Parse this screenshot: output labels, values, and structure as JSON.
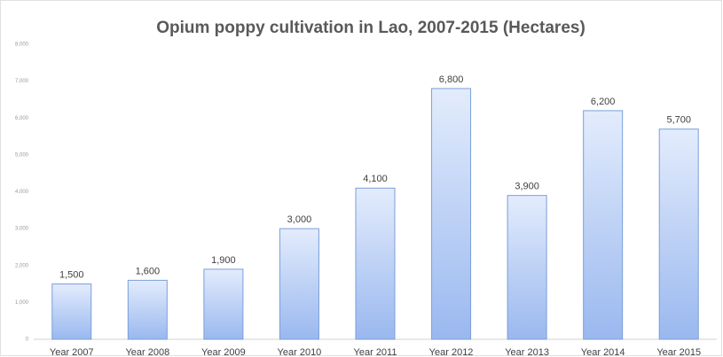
{
  "chart_data": {
    "type": "bar",
    "title": "Opium poppy cultivation in Lao, 2007-2015 (Hectares)",
    "categories": [
      "Year 2007",
      "Year 2008",
      "Year 2009",
      "Year 2010",
      "Year 2011",
      "Year 2012",
      "Year 2013",
      "Year 2014",
      "Year 2015"
    ],
    "values": [
      1500,
      1600,
      1900,
      3000,
      4100,
      6800,
      3900,
      6200,
      5700
    ],
    "value_labels": [
      "1,500",
      "1,600",
      "1,900",
      "3,000",
      "4,100",
      "6,800",
      "3,900",
      "6,200",
      "5,700"
    ],
    "color": "#9ab8ef",
    "ylim": [
      0,
      8000
    ],
    "yticks": [
      0,
      {
        "value": 1000,
        "label": "1,000"
      },
      {
        "value": 2000,
        "label": "2,000"
      },
      {
        "value": 3000,
        "label": "3,000"
      },
      {
        "value": 4000,
        "label": "4,000"
      },
      {
        "value": 5000,
        "label": "5,000"
      },
      {
        "value": 6000,
        "label": "6,000"
      },
      {
        "value": 7000,
        "label": "7,000"
      },
      {
        "value": 8000,
        "label": "8,000"
      }
    ],
    "grid": false
  }
}
